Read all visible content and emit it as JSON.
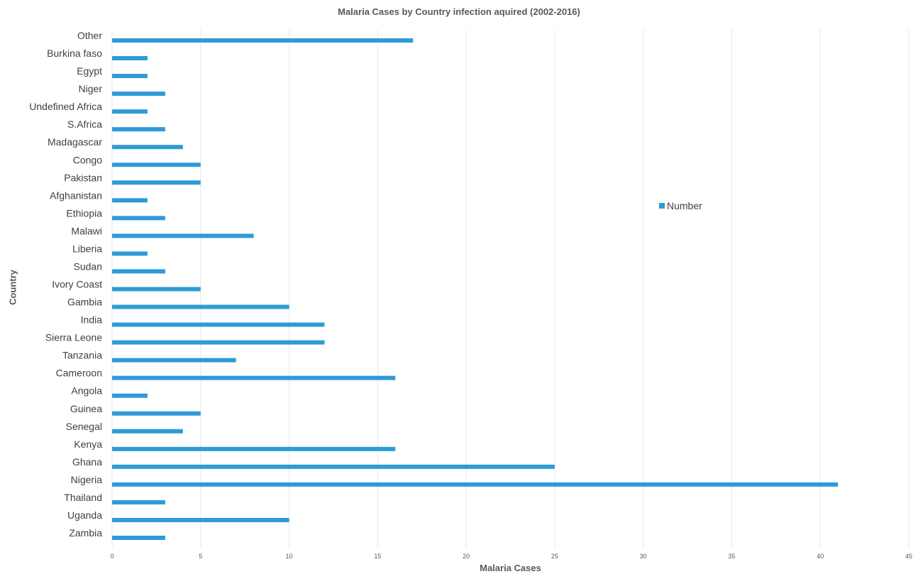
{
  "chart_data": {
    "type": "bar",
    "orientation": "horizontal",
    "title": "Malaria Cases by Country infection aquired (2002-2016)",
    "xlabel": "Malaria Cases",
    "ylabel": "Country",
    "xlim": [
      0,
      45
    ],
    "xticks": [
      "0",
      "5",
      "10",
      "15",
      "20",
      "25",
      "30",
      "35",
      "40",
      "45"
    ],
    "grid": "vertical",
    "legend_position": "right",
    "categories": [
      "Other",
      "Burkina faso",
      "Egypt",
      "Niger",
      "Undefined Africa",
      "S.Africa",
      "Madagascar",
      "Congo",
      "Pakistan",
      "Afghanistan",
      "Ethiopia",
      "Malawi",
      "Liberia",
      "Sudan",
      "Ivory Coast",
      "Gambia",
      "India",
      "Sierra Leone",
      "Tanzania",
      "Cameroon",
      "Angola",
      "Guinea",
      "Senegal",
      "Kenya",
      "Ghana",
      "Nigeria",
      "Thailand",
      "Uganda",
      "Zambia"
    ],
    "series": [
      {
        "name": "Number",
        "color": "#2E9BD6",
        "values": [
          17,
          2,
          2,
          3,
          2,
          3,
          4,
          5,
          5,
          2,
          3,
          8,
          2,
          3,
          5,
          10,
          12,
          12,
          7,
          16,
          2,
          5,
          4,
          16,
          25,
          41,
          3,
          10,
          3
        ]
      }
    ]
  },
  "colors": {
    "bar": "#2E9BD6",
    "grid": "#E6E6E6",
    "axis_text": "#595959",
    "label_text": "#404040"
  }
}
